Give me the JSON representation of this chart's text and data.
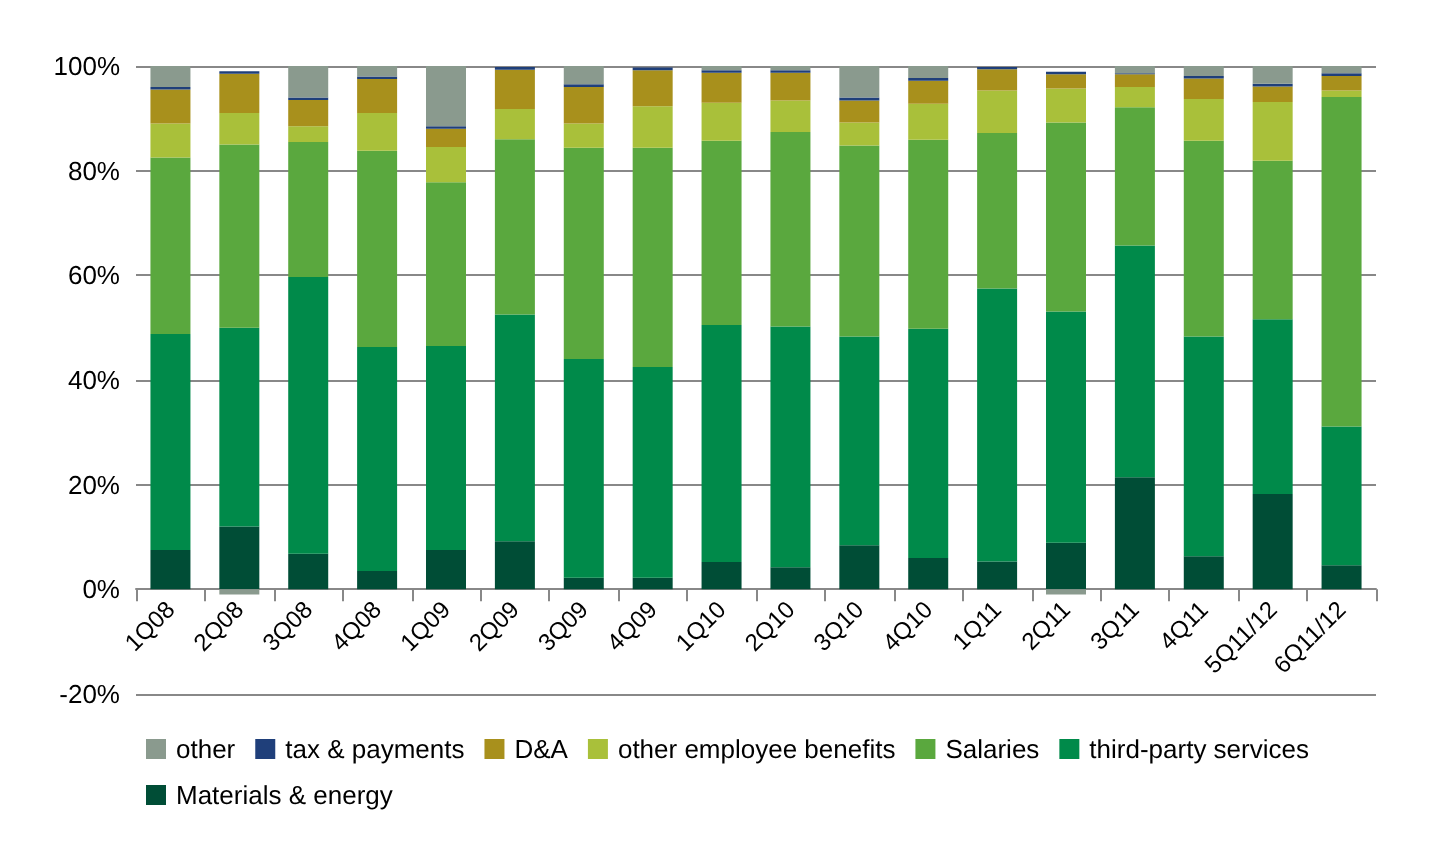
{
  "chart_data": {
    "type": "bar",
    "stacked": true,
    "categories": [
      "1Q08",
      "2Q08",
      "3Q08",
      "4Q08",
      "1Q09",
      "2Q09",
      "3Q09",
      "4Q09",
      "1Q10",
      "2Q10",
      "3Q10",
      "4Q10",
      "1Q11",
      "2Q11",
      "3Q11",
      "4Q11",
      "5Q11/12",
      "6Q11/12"
    ],
    "ylim": [
      -20,
      100
    ],
    "yticks": [
      {
        "value": -20,
        "label": "-20%"
      },
      {
        "value": 0,
        "label": "0%"
      },
      {
        "value": 20,
        "label": "20%"
      },
      {
        "value": 40,
        "label": "40%"
      },
      {
        "value": 60,
        "label": "60%"
      },
      {
        "value": 80,
        "label": "80%"
      },
      {
        "value": 100,
        "label": "100%"
      }
    ],
    "grid": "y",
    "legend": "bottom",
    "series": [
      {
        "name": "Materials & energy",
        "color": "#004d36",
        "values": [
          7.5,
          12,
          6.8,
          3.5,
          7.5,
          9.2,
          2.2,
          2.2,
          5.2,
          4.2,
          8.4,
          6,
          5.3,
          8.9,
          21.4,
          6.3,
          18.2,
          4.6
        ]
      },
      {
        "name": "third-party services",
        "color": "#008a4a",
        "values": [
          41.3,
          38,
          52.9,
          42.8,
          39,
          43.3,
          41.8,
          40.3,
          45.3,
          46,
          39.9,
          43.8,
          52.2,
          44.2,
          44.3,
          42,
          33.4,
          26.5
        ]
      },
      {
        "name": "Salaries",
        "color": "#5aa83e",
        "values": [
          33.7,
          35,
          25.8,
          37.5,
          31.3,
          33.5,
          40.4,
          41.9,
          35.2,
          37.2,
          36.5,
          36.1,
          29.7,
          36.1,
          26.4,
          37.4,
          30.3,
          63
        ]
      },
      {
        "name": "other employee benefits",
        "color": "#a9c03a",
        "values": [
          6.5,
          6,
          3,
          7.2,
          6.7,
          5.8,
          4.6,
          7.9,
          7.3,
          6,
          4.4,
          6.9,
          8.1,
          6.5,
          3.9,
          8,
          11.2,
          1.2
        ]
      },
      {
        "name": "D&A",
        "color": "#a8901c",
        "values": [
          6.5,
          7.5,
          5,
          6.5,
          3.5,
          7.5,
          7,
          6.9,
          5.7,
          5.3,
          4.2,
          4.4,
          4.1,
          2.7,
          2.4,
          3.9,
          3,
          2.8
        ]
      },
      {
        "name": "tax & payments",
        "color": "#1f3f7a",
        "values": [
          0.5,
          0.5,
          0.5,
          0.5,
          0.5,
          0.5,
          0.5,
          0.5,
          0.5,
          0.5,
          0.6,
          0.5,
          0.4,
          0.5,
          0.2,
          0.5,
          0.5,
          0.5
        ]
      },
      {
        "name": "other",
        "color": "#8a9a8e",
        "values": [
          4,
          -1,
          6,
          2,
          11.5,
          null,
          3.5,
          null,
          0.8,
          0.8,
          6,
          2.3,
          null,
          -1,
          1.4,
          1.9,
          3.4,
          1.4
        ]
      }
    ]
  }
}
